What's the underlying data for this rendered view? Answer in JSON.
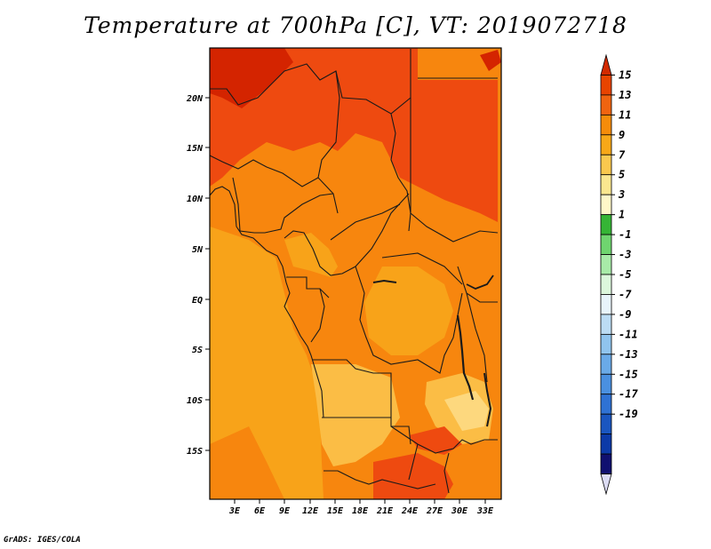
{
  "title": "Temperature at 700hPa [C], VT: 2019072718",
  "credit": "GrADS: IGES/COLA",
  "map": {
    "lat_ticks": [
      "20N",
      "15N",
      "10N",
      "5N",
      "EQ",
      "5S",
      "10S",
      "15S"
    ],
    "lon_ticks": [
      "3E",
      "6E",
      "9E",
      "12E",
      "15E",
      "18E",
      "21E",
      "24E",
      "27E",
      "30E",
      "33E"
    ]
  },
  "colorbar": {
    "labels": [
      "15",
      "13",
      "11",
      "9",
      "7",
      "5",
      "3",
      "1",
      "-1",
      "-3",
      "-5",
      "-7",
      "-9",
      "-11",
      "-13",
      "-15",
      "-17",
      "-19"
    ],
    "colors": [
      "#d22a00",
      "#e84400",
      "#f06410",
      "#f58c0a",
      "#f8a818",
      "#fac84e",
      "#fbe78f",
      "#fff7c8",
      "#35b535",
      "#6fd56f",
      "#a8eba8",
      "#dcf7dc",
      "#e8f4fb",
      "#bcdcf4",
      "#90c4ee",
      "#6aaae8",
      "#4a90e0",
      "#2f72d4",
      "#1a56c0",
      "#0c3aa8",
      "#101070",
      "#dcdcf4"
    ]
  },
  "field_colors": {
    "c13": "#d42400",
    "c11": "#ee4a10",
    "c9": "#f7860e",
    "c7": "#f8a319",
    "c5": "#fbbd45",
    "c3": "#fdd87e"
  }
}
